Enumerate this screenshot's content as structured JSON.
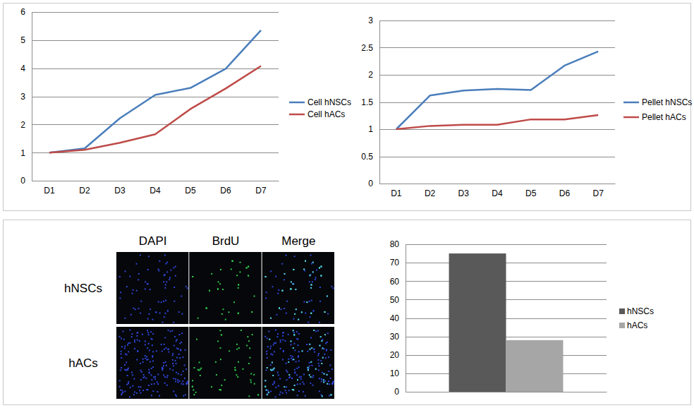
{
  "chart_data": [
    {
      "type": "line",
      "categories": [
        "D1",
        "D2",
        "D3",
        "D4",
        "D5",
        "D6",
        "D7"
      ],
      "series": [
        {
          "name": "Cell hNSCs",
          "color": "#4a7ebb",
          "values": [
            1,
            1.15,
            2.22,
            3.05,
            3.3,
            3.98,
            5.35
          ]
        },
        {
          "name": "Cell hACs",
          "color": "#be4b48",
          "values": [
            1,
            1.1,
            1.35,
            1.65,
            2.55,
            3.28,
            4.08
          ]
        }
      ],
      "ylim": [
        0,
        6
      ],
      "yticks": [
        0,
        1,
        2,
        3,
        4,
        5,
        6
      ],
      "grid": true,
      "legend": "right"
    },
    {
      "type": "line",
      "categories": [
        "D1",
        "D2",
        "D3",
        "D4",
        "D5",
        "D6",
        "D7"
      ],
      "series": [
        {
          "name": "Pellet hNSCs",
          "color": "#4a7ebb",
          "values": [
            1,
            1.62,
            1.71,
            1.74,
            1.72,
            2.17,
            2.43
          ]
        },
        {
          "name": "Pellet hACs",
          "color": "#be4b48",
          "values": [
            1,
            1.06,
            1.08,
            1.08,
            1.18,
            1.18,
            1.26
          ]
        }
      ],
      "ylim": [
        0,
        3
      ],
      "yticks": [
        0,
        0.5,
        1,
        1.5,
        2,
        2.5,
        3
      ],
      "grid": true,
      "legend": "right"
    },
    {
      "type": "bar",
      "categories": [
        null
      ],
      "series": [
        {
          "name": "hNSCs",
          "color": "#595959",
          "values": [
            75
          ]
        },
        {
          "name": "hACs",
          "color": "#a6a6a6",
          "values": [
            28
          ]
        }
      ],
      "ylim": [
        0,
        80
      ],
      "yticks": [
        0,
        10,
        20,
        30,
        40,
        50,
        60,
        70,
        80
      ],
      "grid": true,
      "legend": "right"
    }
  ],
  "image_panel": {
    "columns": [
      "DAPI",
      "BrdU",
      "Merge"
    ],
    "rows": [
      "hNSCs",
      "hACs"
    ]
  }
}
